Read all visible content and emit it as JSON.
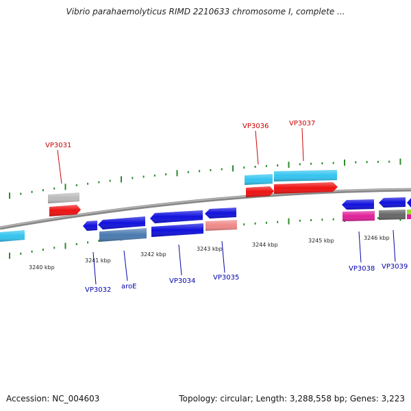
{
  "title": "Vibrio parahaemolyticus RIMD 2210633 chromosome I, complete ...",
  "footer": {
    "accession": "Accession: NC_004603",
    "topology": "Topology: circular; Length: 3,288,558 bp; Genes: 3,223"
  },
  "kbp_labels": [
    "3240 kbp",
    "3241 kbp",
    "3242 kbp",
    "3243 kbp",
    "3244 kbp",
    "3245 kbp",
    "3246 kbp"
  ],
  "top_gene_labels": [
    "VP3031",
    "VP3036",
    "VP3037"
  ],
  "bottom_gene_labels": [
    "VP3032",
    "aroE",
    "VP3034",
    "VP3035",
    "VP3038",
    "VP3039"
  ],
  "colors": {
    "backbone": "#888888",
    "ticks": "#2a8a2a",
    "top_label": "#cc0000",
    "bottom_label": "#0000aa",
    "cyan": "#33c4f0",
    "red": "#ee1111",
    "blue": "#1010dd",
    "steel": "#4a7ab0",
    "salmon": "#f08888",
    "magenta": "#e0209a",
    "grey": "#666666",
    "light_grey": "#bbbbbb"
  }
}
